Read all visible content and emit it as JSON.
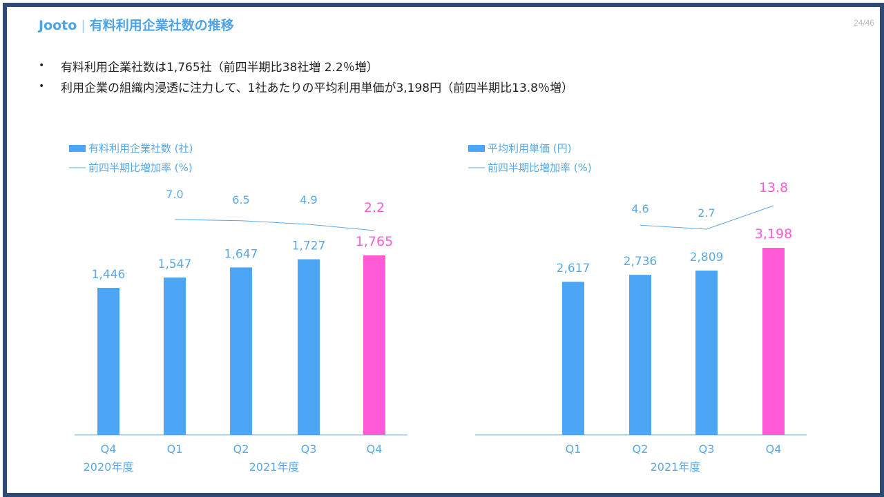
{
  "header": {
    "brand": "Jooto",
    "title": "有料利用企業社数の推移",
    "page": "24/46"
  },
  "bullets": [
    "有料利用企業社数は1,765社（前四半期比38社増 2.2％増）",
    "利用企業の組織内浸透に注力して、1社あたりの平均利用単価が3,198円（前四半期比13.8％増）"
  ],
  "colors": {
    "bar": "#4da6f5",
    "highlight": "#ff5bd6",
    "label": "#5aa9e6",
    "axis": "#86c0ee",
    "frame": "#2f4a73"
  },
  "chart_data": [
    {
      "type": "bar",
      "title": "",
      "legend": [
        "有料利用企業社数 (社)",
        "前四半期比増加率 (%)"
      ],
      "categories": [
        "Q4",
        "Q1",
        "Q2",
        "Q3",
        "Q4"
      ],
      "year_labels": [
        "2020年度",
        "2021年度"
      ],
      "values": [
        1446,
        1547,
        1647,
        1727,
        1765
      ],
      "value_labels": [
        "1,446",
        "1,547",
        "1,647",
        "1,727",
        "1,765"
      ],
      "growth": [
        null,
        7.0,
        6.5,
        4.9,
        2.2
      ],
      "growth_labels": [
        "",
        "7.0",
        "6.5",
        "4.9",
        "2.2"
      ],
      "highlight_index": 4,
      "ylim": [
        0,
        2000
      ]
    },
    {
      "type": "bar",
      "title": "",
      "legend": [
        "平均利用単価 (円)",
        "前四半期比増加率 (%)"
      ],
      "categories": [
        "Q1",
        "Q2",
        "Q3",
        "Q4"
      ],
      "year_labels": [
        "2021年度"
      ],
      "values": [
        2617,
        2736,
        2809,
        3198
      ],
      "value_labels": [
        "2,617",
        "2,736",
        "2,809",
        "3,198"
      ],
      "growth": [
        null,
        4.6,
        2.7,
        13.8
      ],
      "growth_labels": [
        "",
        "4.6",
        "2.7",
        "13.8"
      ],
      "highlight_index": 3,
      "ylim": [
        0,
        3600
      ]
    }
  ]
}
